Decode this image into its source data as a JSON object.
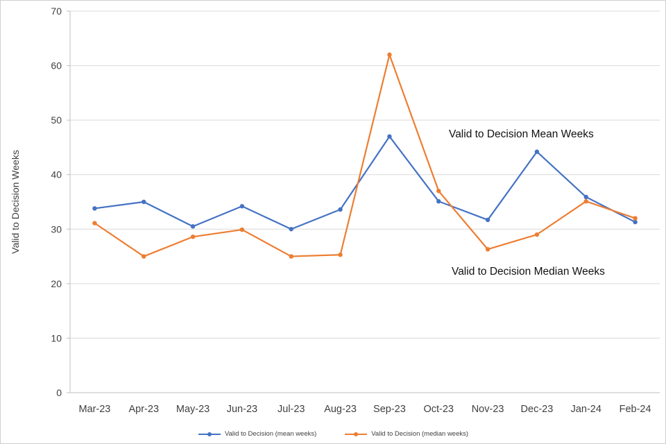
{
  "chart_data": {
    "type": "line",
    "categories": [
      "Mar-23",
      "Apr-23",
      "May-23",
      "Jun-23",
      "Jul-23",
      "Aug-23",
      "Sep-23",
      "Oct-23",
      "Nov-23",
      "Dec-23",
      "Jan-24",
      "Feb-24"
    ],
    "series": [
      {
        "name": "Valid to Decision (mean weeks)",
        "color": "#4472C4",
        "values": [
          33.8,
          35.0,
          30.5,
          34.2,
          30.0,
          33.6,
          47.0,
          35.1,
          31.7,
          44.2,
          35.9,
          31.3
        ]
      },
      {
        "name": "Valid to Decision (median weeks)",
        "color": "#ED7D31",
        "values": [
          31.1,
          25.0,
          28.6,
          29.9,
          25.0,
          25.3,
          62.0,
          37.0,
          26.3,
          29.0,
          35.1,
          32.0
        ]
      }
    ],
    "title": "",
    "xlabel": "",
    "ylabel": "Valid to Decision Weeks",
    "ylim": [
      0,
      70
    ],
    "yticks": [
      0,
      10,
      20,
      30,
      40,
      50,
      60,
      70
    ],
    "grid": true,
    "legend_position": "bottom",
    "annotations": [
      {
        "text": "Valid to Decision Mean Weeks"
      },
      {
        "text": "Valid to Decision Median Weeks"
      }
    ]
  }
}
